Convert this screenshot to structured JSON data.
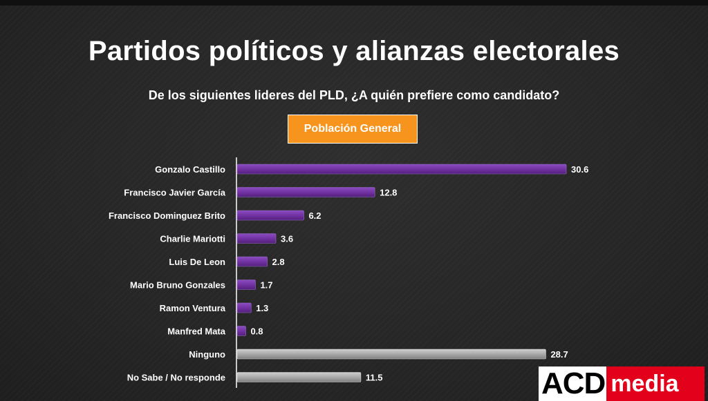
{
  "title": "Partidos políticos y alianzas electorales",
  "subtitle": "De los siguientes lideres del PLD, ¿A quién prefiere como candidato?",
  "badge": "Población General",
  "logo": {
    "left": "ACD",
    "right": "media"
  },
  "colors": {
    "candidate_bar": "#7030a0",
    "other_bar": "#a6a6a6",
    "badge": "#f7941d"
  },
  "chart_data": {
    "type": "bar",
    "orientation": "horizontal",
    "categories": [
      "Gonzalo Castillo",
      "Francisco Javier García",
      "Francisco Dominguez Brito",
      "Charlie Mariotti",
      "Luis De Leon",
      "Mario Bruno Gonzales",
      "Ramon Ventura",
      "Manfred Mata",
      "Ninguno",
      "No Sabe / No responde"
    ],
    "values": [
      30.6,
      12.8,
      6.2,
      3.6,
      2.8,
      1.7,
      1.3,
      0.8,
      28.7,
      11.5
    ],
    "value_labels": [
      "30.6",
      "12.8",
      "6.2",
      "3.6",
      "2.8",
      "1.7",
      "1.3",
      "0.8",
      "28.7",
      "11.5"
    ],
    "bar_kind": [
      "candidate",
      "candidate",
      "candidate",
      "candidate",
      "candidate",
      "candidate",
      "candidate",
      "candidate",
      "other",
      "other"
    ],
    "title": "De los siguientes lideres del PLD, ¿A quién prefiere como candidato?",
    "xlabel": "",
    "ylabel": "",
    "xlim": [
      0,
      30.6
    ],
    "grid": false,
    "legend": "none"
  }
}
